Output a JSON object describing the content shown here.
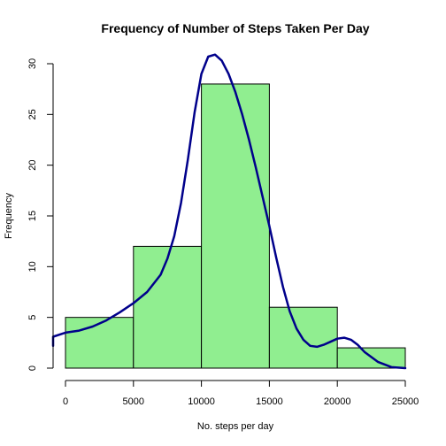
{
  "chart_data": {
    "type": "bar",
    "title": "Frequency of Number of Steps Taken Per Day",
    "xlabel": "No. steps per day",
    "ylabel": "Frequency",
    "bins": [
      {
        "from": 0,
        "to": 5000,
        "value": 5
      },
      {
        "from": 5000,
        "to": 10000,
        "value": 12
      },
      {
        "from": 10000,
        "to": 15000,
        "value": 28
      },
      {
        "from": 15000,
        "to": 20000,
        "value": 6
      },
      {
        "from": 20000,
        "to": 25000,
        "value": 2
      }
    ],
    "xlim": [
      0,
      25000
    ],
    "ylim": [
      0,
      30
    ],
    "x_ticks": [
      0,
      5000,
      10000,
      15000,
      20000,
      25000
    ],
    "y_ticks": [
      0,
      5,
      10,
      15,
      20,
      25,
      30
    ],
    "density_curve": {
      "x": [
        -2000,
        -1000,
        0,
        1000,
        2000,
        3000,
        4000,
        5000,
        6000,
        7000,
        7500,
        8000,
        8500,
        9000,
        9500,
        10000,
        10500,
        11000,
        11500,
        12000,
        12500,
        13000,
        13500,
        14000,
        14500,
        15000,
        15500,
        16000,
        16500,
        17000,
        17500,
        18000,
        18500,
        19000,
        19500,
        20000,
        20500,
        21000,
        21500,
        22000,
        23000,
        24000,
        25000
      ],
      "y": [
        2.2,
        3.1,
        3.5,
        3.7,
        4.1,
        4.7,
        5.5,
        6.4,
        7.5,
        9.2,
        10.8,
        13.0,
        16.3,
        20.5,
        25.2,
        29.0,
        30.7,
        30.9,
        30.3,
        29.0,
        27.2,
        25.0,
        22.5,
        19.8,
        16.9,
        14.0,
        10.9,
        8.0,
        5.6,
        3.9,
        2.8,
        2.2,
        2.1,
        2.3,
        2.6,
        2.9,
        3.0,
        2.8,
        2.3,
        1.6,
        0.6,
        0.1,
        0.0
      ]
    },
    "colors": {
      "bar_fill": "#90ee90",
      "bar_edge": "#000000",
      "density": "#00008b"
    },
    "grid": false,
    "legend": "none"
  }
}
